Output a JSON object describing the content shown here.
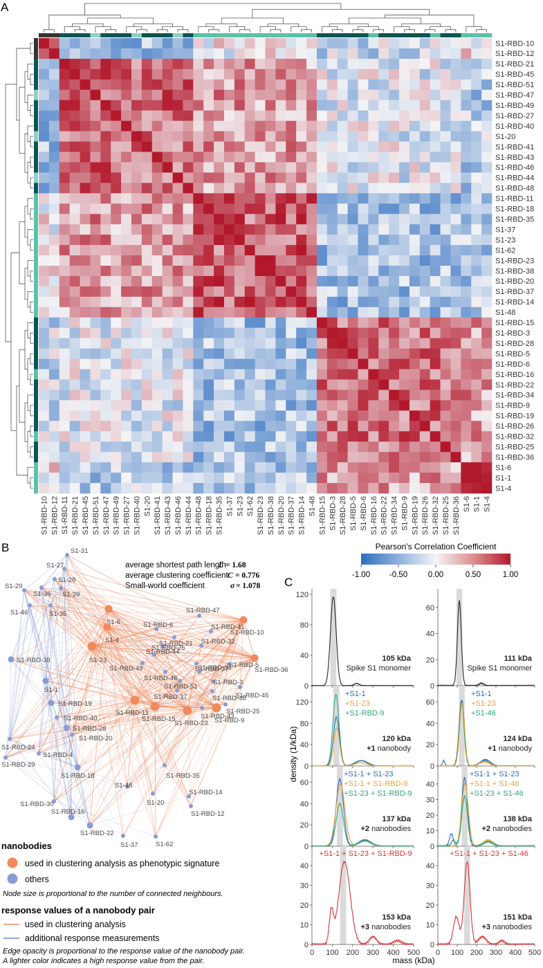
{
  "panels": {
    "A": "A",
    "B": "B",
    "C": "C"
  },
  "heatmap": {
    "col_labels": [
      "S1-RBD-10",
      "S1-RBD-12",
      "S1-RBD-11",
      "S1-RBD-21",
      "S1-RBD-45",
      "S1-RBD-51",
      "S1-RBD-47",
      "S1-RBD-49",
      "S1-RBD-27",
      "S1-RBD-40",
      "S1-20",
      "S1-RBD-41",
      "S1-RBD-43",
      "S1-RBD-46",
      "S1-RBD-44",
      "S1-RBD-48",
      "S1-RBD-18",
      "S1-RBD-35",
      "S1-37",
      "S1-23",
      "S1-62",
      "S1-RBD-23",
      "S1-RBD-38",
      "S1-RBD-20",
      "S1-RBD-37",
      "S1-RBD-14",
      "S1-48",
      "S1-RBD-15",
      "S1-RBD-3",
      "S1-RBD-28",
      "S1-RBD-5",
      "S1-RBD-6",
      "S1-RBD-16",
      "S1-RBD-22",
      "S1-RBD-34",
      "S1-RBD-9",
      "S1-RBD-19",
      "S1-RBD-26",
      "S1-RBD-32",
      "S1-RBD-25",
      "S1-RBD-36",
      "S1-6",
      "S1-1",
      "S1-4"
    ],
    "row_labels": [
      "S1-RBD-10",
      "S1-RBD-12",
      "S1-RBD-21",
      "S1-RBD-45",
      "S1-RBD-51",
      "S1-RBD-47",
      "S1-RBD-49",
      "S1-RBD-27",
      "S1-RBD-40",
      "S1-20",
      "S1-RBD-41",
      "S1-RBD-43",
      "S1-RBD-46",
      "S1-RBD-44",
      "S1-RBD-48",
      "S1-RBD-11",
      "S1-RBD-18",
      "S1-RBD-35",
      "S1-37",
      "S1-23",
      "S1-62",
      "S1-RBD-23",
      "S1-RBD-38",
      "S1-RBD-20",
      "S1-RBD-37",
      "S1-RBD-14",
      "S1-48",
      "S1-RBD-15",
      "S1-RBD-3",
      "S1-RBD-28",
      "S1-RBD-5",
      "S1-RBD-6",
      "S1-RBD-16",
      "S1-RBD-22",
      "S1-RBD-34",
      "S1-RBD-9",
      "S1-RBD-19",
      "S1-RBD-26",
      "S1-RBD-32",
      "S1-RBD-25",
      "S1-RBD-36",
      "S1-6",
      "S1-1",
      "S1-4"
    ],
    "groups": [
      {
        "name": "g1",
        "start": 0,
        "end": 2
      },
      {
        "name": "g2",
        "start": 2,
        "end": 15
      },
      {
        "name": "g3",
        "start": 15,
        "end": 27
      },
      {
        "name": "g4",
        "start": 27,
        "end": 41
      },
      {
        "name": "g5",
        "start": 41,
        "end": 44
      }
    ],
    "colorbar": {
      "title": "Pearson's Correlation Coefficient",
      "ticks": [
        "-1.00",
        "-0.50",
        "0.00",
        "0.50",
        "1.00"
      ],
      "colors": {
        "low": "#2f6ec0",
        "mid": "#f4f4f6",
        "high": "#b2182b"
      }
    }
  },
  "network": {
    "stats": [
      {
        "label": "average shortest path length",
        "symbol": "L",
        "value": "= 1.68"
      },
      {
        "label": "average clustering coefficient",
        "symbol": "C",
        "value": "= 0.776"
      },
      {
        "label": "Small-world coefficient",
        "symbol": "σ",
        "value": "= 1.078"
      }
    ],
    "nodes": [
      {
        "id": "S1-31",
        "type": "other"
      },
      {
        "id": "S1-27",
        "type": "other"
      },
      {
        "id": "S1-28",
        "type": "other"
      },
      {
        "id": "S1-29",
        "type": "other"
      },
      {
        "id": "S1-36",
        "type": "other"
      },
      {
        "id": "S1-39",
        "type": "other"
      },
      {
        "id": "S1-46",
        "type": "other"
      },
      {
        "id": "S1-35",
        "type": "other"
      },
      {
        "id": "S1-6",
        "type": "used"
      },
      {
        "id": "S1-4",
        "type": "used"
      },
      {
        "id": "S1-23",
        "type": "used"
      },
      {
        "id": "S1-RBD-10",
        "type": "used"
      },
      {
        "id": "S1-RBD-36",
        "type": "used"
      },
      {
        "id": "S1-RBD-11",
        "type": "used"
      },
      {
        "id": "S1-RBD-15",
        "type": "used"
      },
      {
        "id": "S1-RBD-23",
        "type": "used"
      },
      {
        "id": "S1-RBD-9",
        "type": "used"
      },
      {
        "id": "S1-RBD-47",
        "type": "other"
      },
      {
        "id": "S1-RBD-6",
        "type": "other"
      },
      {
        "id": "S1-RBD-41",
        "type": "other"
      },
      {
        "id": "S1-RBD-21",
        "type": "other"
      },
      {
        "id": "S1-RBD-44",
        "type": "other"
      },
      {
        "id": "S1-RBD-32",
        "type": "other"
      },
      {
        "id": "S1-RBD-26",
        "type": "other"
      },
      {
        "id": "S1-RBD-49",
        "type": "other"
      },
      {
        "id": "S1-RBD-27",
        "type": "other"
      },
      {
        "id": "S1-RBD-5",
        "type": "other"
      },
      {
        "id": "S1-RBD-34",
        "type": "other"
      },
      {
        "id": "S1-RBD-46",
        "type": "other"
      },
      {
        "id": "S1-RBD-51",
        "type": "other"
      },
      {
        "id": "S1-RBD-3",
        "type": "other"
      },
      {
        "id": "S1-RBD-45",
        "type": "other"
      },
      {
        "id": "S1-RBD-37",
        "type": "other"
      },
      {
        "id": "S1-RBD-48",
        "type": "other"
      },
      {
        "id": "S1-RBD-25",
        "type": "other"
      },
      {
        "id": "S1-RBD-43",
        "type": "other"
      },
      {
        "id": "S1-RBD-38",
        "type": "other"
      },
      {
        "id": "S1-1",
        "type": "other"
      },
      {
        "id": "S1-RBD-19",
        "type": "other"
      },
      {
        "id": "S1-RBD-40",
        "type": "other"
      },
      {
        "id": "S1-RBD-28",
        "type": "other"
      },
      {
        "id": "S1-RBD-20",
        "type": "other"
      },
      {
        "id": "S1-RBD-24",
        "type": "other"
      },
      {
        "id": "S1-RBD-4",
        "type": "other"
      },
      {
        "id": "S1-RBD-29",
        "type": "other"
      },
      {
        "id": "S1-RBD-18",
        "type": "other"
      },
      {
        "id": "S1-RBD-35",
        "type": "other"
      },
      {
        "id": "S1-48",
        "type": "other"
      },
      {
        "id": "S1-20",
        "type": "other"
      },
      {
        "id": "S1-RBD-14",
        "type": "other"
      },
      {
        "id": "S1-RBD-12",
        "type": "other"
      },
      {
        "id": "S1-RBD-30",
        "type": "other"
      },
      {
        "id": "S1-RBD-16",
        "type": "other"
      },
      {
        "id": "S1-RBD-22",
        "type": "other"
      },
      {
        "id": "S1-37",
        "type": "other"
      },
      {
        "id": "S1-62",
        "type": "other"
      }
    ],
    "legend": {
      "nodes_title": "nanobodies",
      "node_used": "used in clustering analysis as phenotypic signature",
      "node_other": "others",
      "node_note": "Node size is proportional to the number of connected neighbours.",
      "edges_title": "response values of a nanobody pair",
      "edge_used": "used in clustering analysis",
      "edge_other": "additional response measurements",
      "edge_note_1": "Edge opacity is proportional to the response value of the nanobody pair.",
      "edge_note_2": "A lighter color indicates a high response value from the pair."
    },
    "colors": {
      "used": "#f08a5d",
      "other": "#8a9cd4"
    }
  },
  "mass_photometry": {
    "ylabel": "density (1/kDa)",
    "xlabel": "mass (kDa)",
    "x_ticks": [
      "0",
      "100",
      "200",
      "300",
      "400",
      "500"
    ],
    "colors": {
      "S1-1": "#2a6ab5",
      "S1-23": "#f0a030",
      "third": "#2aa77a",
      "triple": "#e03030",
      "monomer": "#222222"
    },
    "columns": [
      {
        "rows": [
          {
            "y_ticks": [
              "0",
              "40",
              "80",
              "120"
            ],
            "ymax": 120,
            "mass": "105 kDa",
            "desc": "Spike S1 monomer",
            "legend": []
          },
          {
            "y_ticks": [
              "0",
              "40",
              "80",
              "120"
            ],
            "ymax": 140,
            "mass": "120 kDa",
            "desc_count": "+1",
            "desc_rest": "nanobody",
            "legend": [
              "+S1-1",
              "+S1-23",
              "+S1-RBD-9"
            ]
          },
          {
            "y_ticks": [
              "0",
              "20",
              "40",
              "60"
            ],
            "ymax": 70,
            "mass": "137 kDa",
            "desc_count": "+2",
            "desc_rest": "nanobodies",
            "legend": [
              "+S1-1 + S1-23",
              "+S1-1 + S1-RBD-9",
              "+S1-23 + S1-RBD-9"
            ]
          },
          {
            "y_ticks": [
              "0",
              "10",
              "20",
              "30",
              "40"
            ],
            "ymax": 47,
            "mass": "153 kDa",
            "desc_count": "+3",
            "desc_rest": "nanobodies",
            "legend": [
              "+S1-1 + S1-23 + S1-RBD-9"
            ]
          }
        ]
      },
      {
        "rows": [
          {
            "y_ticks": [
              "0",
              "20",
              "40",
              "60"
            ],
            "ymax": 70,
            "mass": "111 kDa",
            "desc": "Spike S1 monomer",
            "legend": []
          },
          {
            "y_ticks": [
              "0",
              "20",
              "40",
              "60"
            ],
            "ymax": 70,
            "mass": "124 kDa",
            "desc_count": "+1",
            "desc_rest": "nanobody",
            "legend": [
              "+S1-1",
              "+S1-23",
              "+S1-46"
            ]
          },
          {
            "y_ticks": [
              "0",
              "10",
              "20",
              "30",
              "40"
            ],
            "ymax": 48,
            "mass": "138 kDa",
            "desc_count": "+2",
            "desc_rest": "nanobodies",
            "legend": [
              "+S1-1 + S1-23",
              "+S1-1 + S1-46",
              "+S1-23 + S1-46"
            ]
          },
          {
            "y_ticks": [
              "0",
              "10",
              "20",
              "30",
              "40"
            ],
            "ymax": 47,
            "mass": "151 kDa",
            "desc_count": "+3",
            "desc_rest": "nanobodies",
            "legend": [
              "+S1-1 + S1-23 + S1-46"
            ]
          }
        ]
      }
    ]
  }
}
